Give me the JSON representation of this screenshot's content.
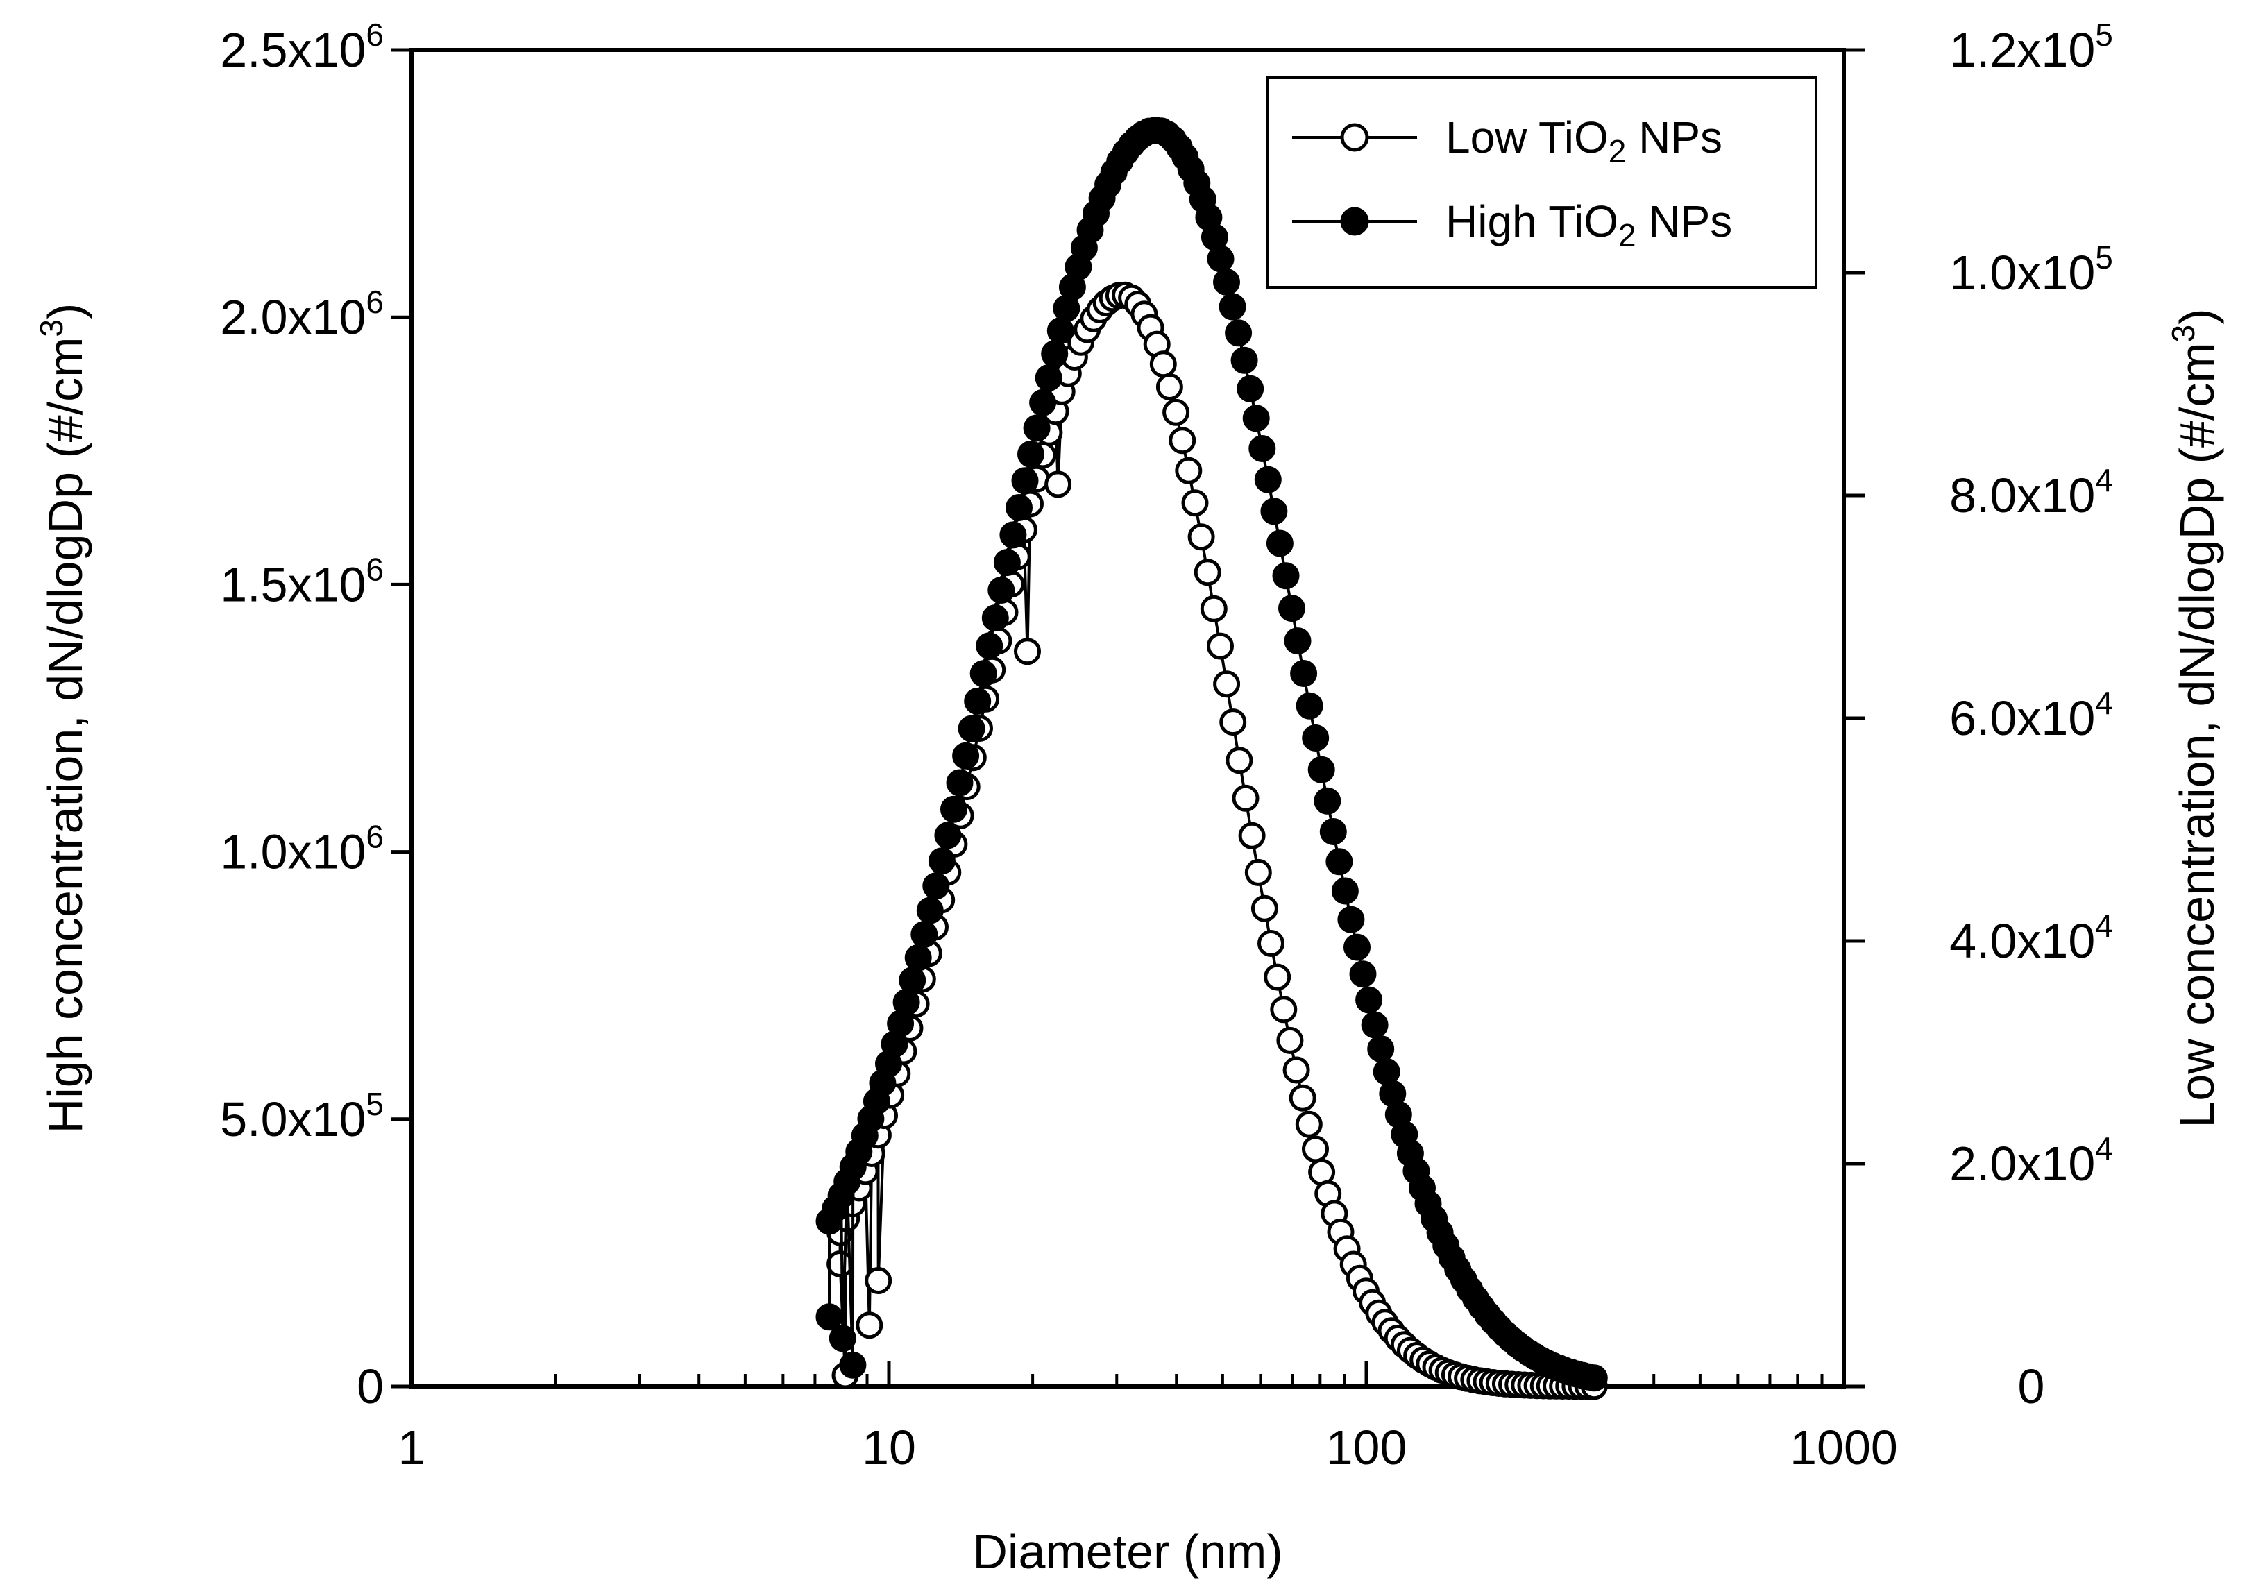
{
  "chart_data": {
    "type": "scatter",
    "title": "",
    "xlabel": "Diameter (nm)",
    "ylabel_left": "High concentration, dN/dlogDp (#/cm3)",
    "ylabel_right": "Low concentration, dN/dlogDp (#/cm3)",
    "x_scale": "log",
    "xlim": [
      1,
      1000
    ],
    "ylim_left": [
      0,
      2500000
    ],
    "ylim_right": [
      0,
      120000
    ],
    "grid": false,
    "legend_position": "top-right",
    "x_ticks": [
      {
        "value": 1,
        "label": "1"
      },
      {
        "value": 10,
        "label": "10"
      },
      {
        "value": 100,
        "label": "100"
      },
      {
        "value": 1000,
        "label": "1000"
      }
    ],
    "left_ticks": [
      {
        "value": 0,
        "mant": "0",
        "exp": ""
      },
      {
        "value": 500000,
        "mant": "5.0x10",
        "exp": "5"
      },
      {
        "value": 1000000,
        "mant": "1.0x10",
        "exp": "6"
      },
      {
        "value": 1500000,
        "mant": "1.5x10",
        "exp": "6"
      },
      {
        "value": 2000000,
        "mant": "2.0x10",
        "exp": "6"
      },
      {
        "value": 2500000,
        "mant": "2.5x10",
        "exp": "6"
      }
    ],
    "right_ticks": [
      {
        "value": 0,
        "mant": "0",
        "exp": ""
      },
      {
        "value": 20000,
        "mant": "2.0x10",
        "exp": "4"
      },
      {
        "value": 40000,
        "mant": "4.0x10",
        "exp": "4"
      },
      {
        "value": 60000,
        "mant": "6.0x10",
        "exp": "4"
      },
      {
        "value": 80000,
        "mant": "8.0x10",
        "exp": "4"
      },
      {
        "value": 100000,
        "mant": "1.0x10",
        "exp": "5"
      },
      {
        "value": 120000,
        "mant": "1.2x10",
        "exp": "5"
      }
    ],
    "legend": {
      "low": {
        "pre": "Low TiO",
        "sub": "2",
        "post": " NPs"
      },
      "high": {
        "pre": "High TiO",
        "sub": "2",
        "post": " NPs"
      }
    },
    "axis_unit_superscript": "3",
    "series": [
      {
        "name": "Low TiO2 NPs",
        "axis": "right",
        "marker": "open-circle",
        "mode": "lognormal",
        "x_min": 7.9,
        "x_max": 300,
        "n_points": 120,
        "peak_x": 31,
        "peak_value": 98000,
        "sigma_left": 0.3,
        "sigma_right": 0.23,
        "anomalies": [
          {
            "x": 7.9,
            "y": 11000
          },
          {
            "x": 8.1,
            "y": 1000
          },
          {
            "x": 9.1,
            "y": 5500
          },
          {
            "x": 9.5,
            "y": 9500
          },
          {
            "x": 19.5,
            "y": 66000
          },
          {
            "x": 22.6,
            "y": 81000
          }
        ]
      },
      {
        "name": "High TiO2 NPs",
        "axis": "left",
        "marker": "filled-circle",
        "mode": "lognormal",
        "x_min": 7.5,
        "x_max": 300,
        "n_points": 130,
        "peak_x": 36.3,
        "peak_value": 2350000,
        "sigma_left": 0.34,
        "sigma_right": 0.29,
        "anomalies": [
          {
            "x": 7.5,
            "y": 130000
          },
          {
            "x": 8.0,
            "y": 90000
          },
          {
            "x": 8.4,
            "y": 40000
          }
        ]
      }
    ]
  }
}
